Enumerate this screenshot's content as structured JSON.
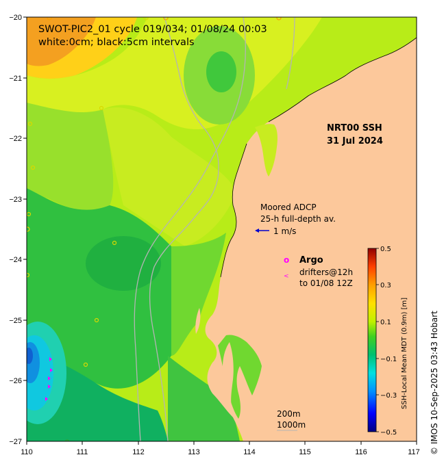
{
  "title_line1": "SWOT-PIC2_01 cycle 019/034; 01/08/24 00:03",
  "title_line2": "white:0cm; black:5cm intervals",
  "product_line1": "NRT00 SSH",
  "product_line2": "31 Jul 2024",
  "adcp": {
    "line1": "Moored ADCP",
    "line2": "25-h full-depth av.",
    "scale_label": "1 m/s",
    "arrow_color": "#0000cc"
  },
  "argo": {
    "marker": "o",
    "label": "Argo",
    "drifter_marker": "<",
    "drifter_line1": "drifters@12h",
    "drifter_line2": "to 01/08 12Z",
    "color": "#ff00ff"
  },
  "isobaths": {
    "label_200": "200m",
    "label_1000": "1000m"
  },
  "colorbar": {
    "label": "SSH-Local Mean MDT (0.9m) [m]",
    "ticks": [
      "0.5",
      "0.3",
      "0.1",
      "−0.1",
      "−0.3",
      "−0.5"
    ],
    "colors": [
      "#00007f",
      "#0000ff",
      "#0080ff",
      "#00e0ff",
      "#00d080",
      "#00c000",
      "#80e000",
      "#e0f000",
      "#ffc000",
      "#ff6000",
      "#c00000",
      "#7f0000"
    ]
  },
  "credit": "© IMOS 10-Sep-2025 03:43 Hobart",
  "axes": {
    "x_ticks": [
      "110",
      "111",
      "112",
      "113",
      "114",
      "115",
      "116",
      "117"
    ],
    "y_ticks": [
      "−20",
      "−21",
      "−22",
      "−23",
      "−24",
      "−25",
      "−26",
      "−27"
    ],
    "lon_range": [
      110,
      117
    ],
    "lat_range": [
      -27,
      -20
    ]
  },
  "colors": {
    "land": "#fcc89b",
    "sea_base": "#7fdc3c",
    "isobath": "#b4b4b4"
  }
}
